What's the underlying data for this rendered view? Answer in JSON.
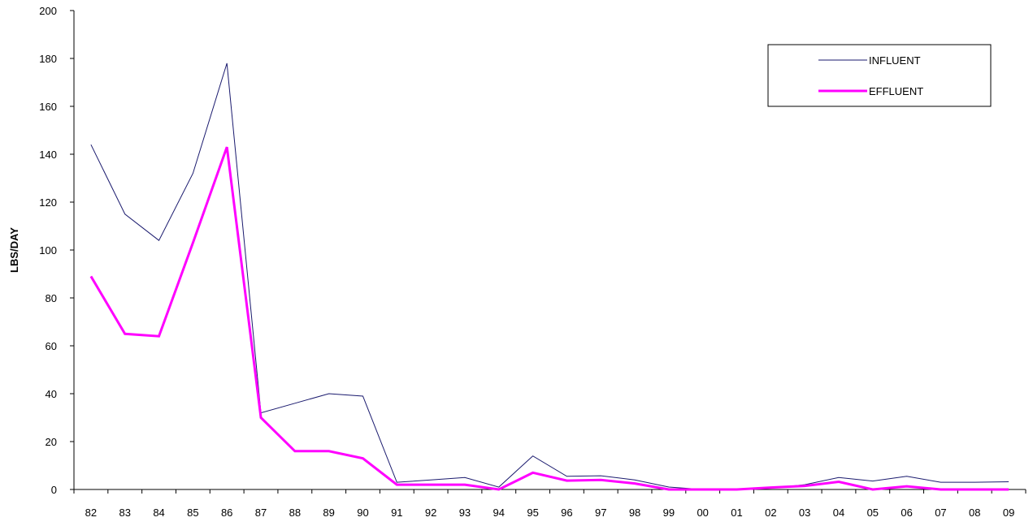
{
  "chart_data": {
    "type": "line",
    "title": "",
    "xlabel": "",
    "ylabel": "LBS/DAY",
    "ylim": [
      0,
      200
    ],
    "yticks": [
      0,
      20,
      40,
      60,
      80,
      100,
      120,
      140,
      160,
      180,
      200
    ],
    "categories": [
      "82",
      "83",
      "84",
      "85",
      "86",
      "87",
      "88",
      "89",
      "90",
      "91",
      "92",
      "93",
      "94",
      "95",
      "96",
      "97",
      "98",
      "99",
      "00",
      "01",
      "02",
      "03",
      "04",
      "05",
      "06",
      "07",
      "08",
      "09"
    ],
    "grid": false,
    "legend": "top-right",
    "series": [
      {
        "name": "INFLUENT",
        "color": "#1a1a6e",
        "values": [
          144,
          115,
          104,
          132,
          178,
          32,
          36,
          40,
          39,
          3,
          4,
          5,
          1,
          14,
          5.5,
          5.7,
          4,
          1,
          0,
          0,
          0.5,
          2,
          5,
          3.5,
          5.5,
          3,
          3,
          3.2
        ]
      },
      {
        "name": "EFFLUENT",
        "color": "#ff00ff",
        "values": [
          89,
          65,
          64,
          103,
          143,
          30,
          16,
          16,
          13,
          2,
          2,
          2,
          0,
          7,
          3.7,
          4,
          2.5,
          0,
          0,
          0,
          0.8,
          1.5,
          3.2,
          0,
          1.3,
          0,
          0,
          0
        ]
      }
    ]
  }
}
